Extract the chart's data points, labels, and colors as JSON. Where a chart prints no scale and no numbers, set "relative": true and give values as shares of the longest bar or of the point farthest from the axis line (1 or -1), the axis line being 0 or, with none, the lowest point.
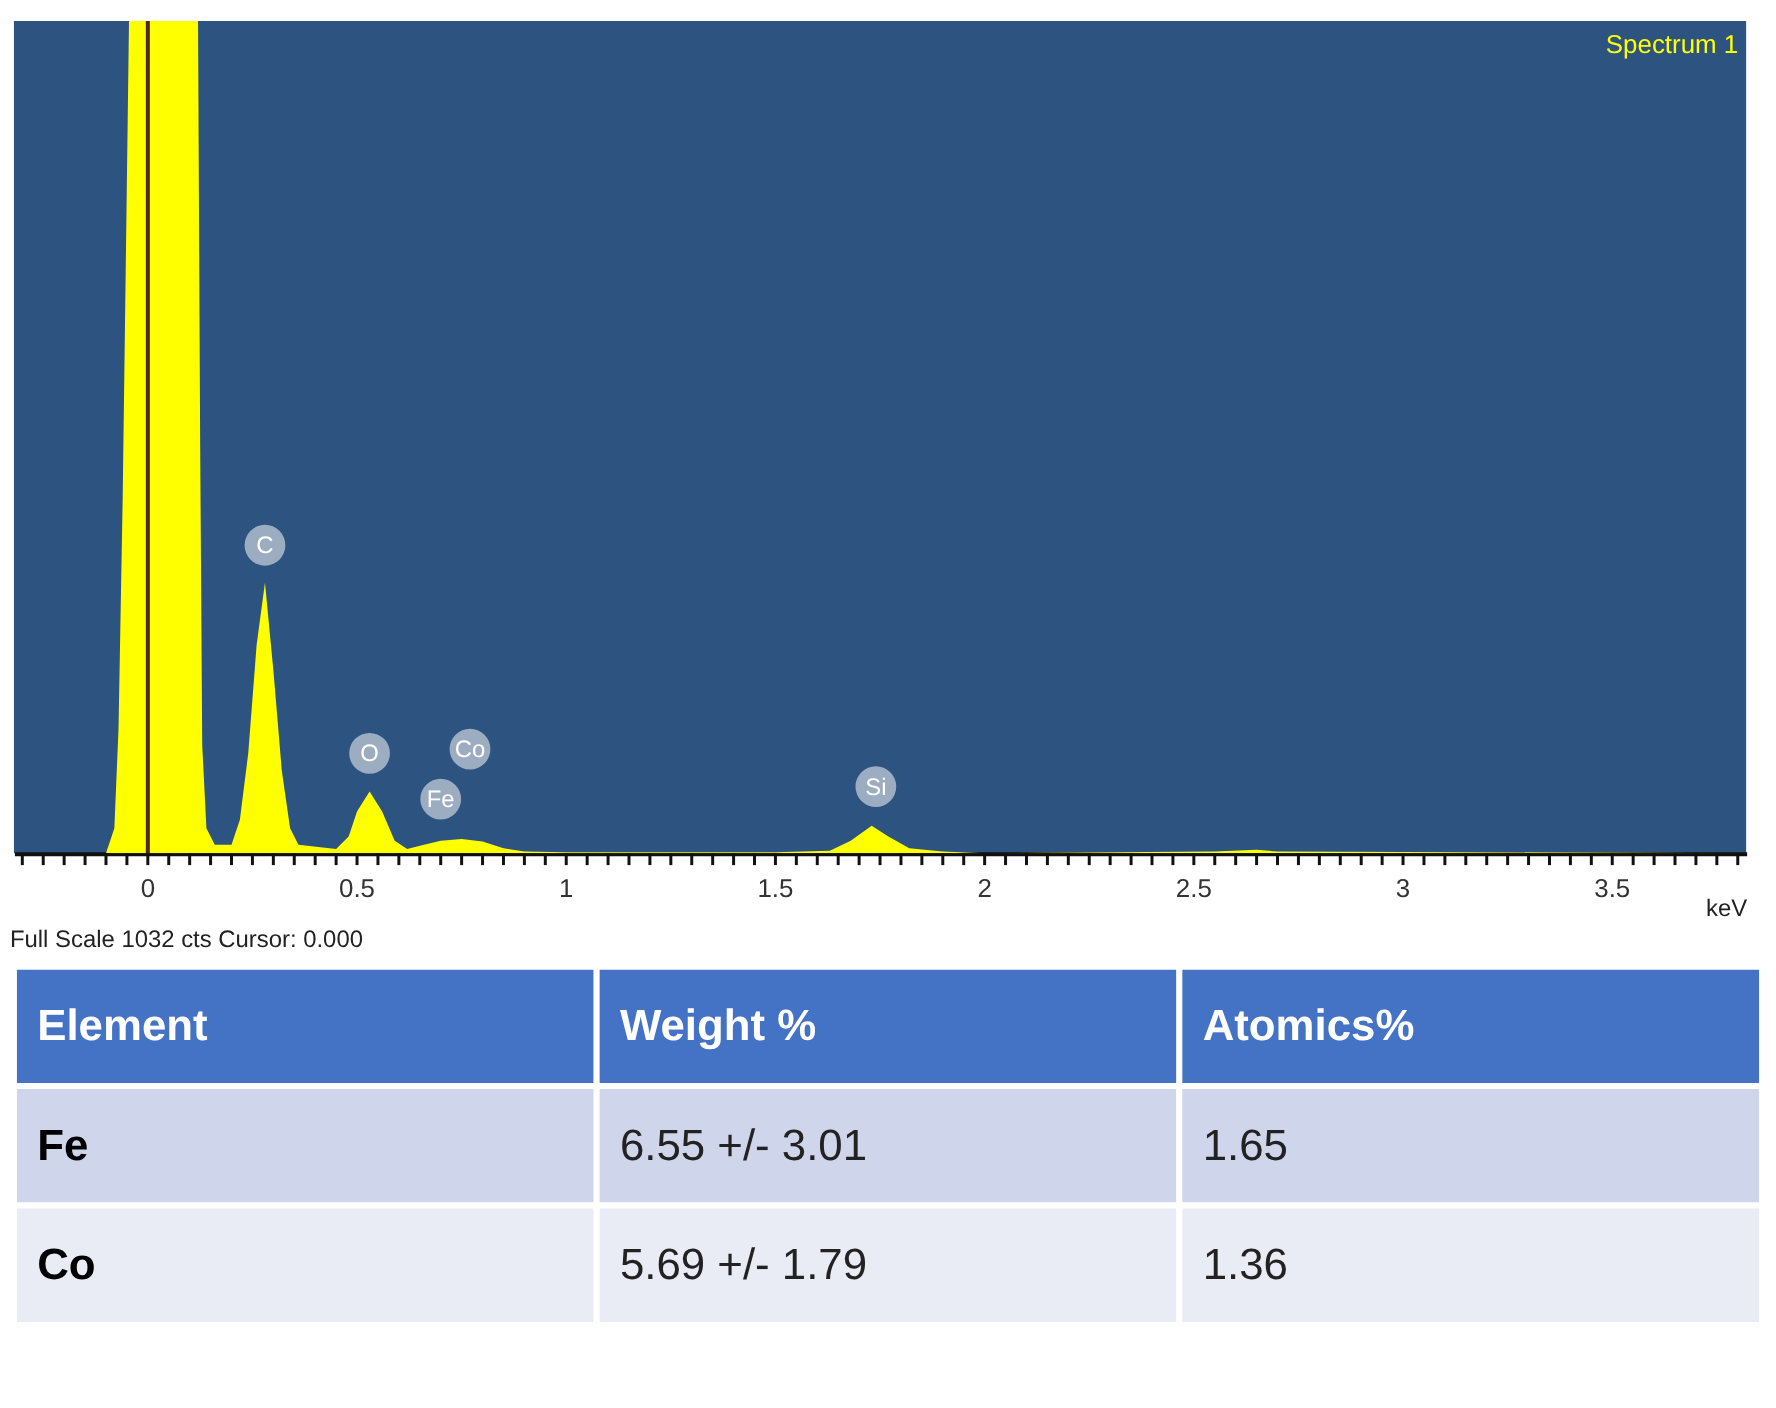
{
  "chart_data": [
    {
      "type": "area",
      "relative": true,
      "xlabel": "keV",
      "legend": "top right",
      "x": [
        -0.32,
        -0.1,
        -0.08,
        -0.07,
        -0.06,
        -0.045,
        0.12,
        0.125,
        0.13,
        0.14,
        0.16,
        0.2,
        0.22,
        0.24,
        0.26,
        0.28,
        0.3,
        0.32,
        0.34,
        0.36,
        0.45,
        0.48,
        0.5,
        0.53,
        0.56,
        0.59,
        0.62,
        0.66,
        0.7,
        0.75,
        0.8,
        0.85,
        0.9,
        1.0,
        1.5,
        1.63,
        1.68,
        1.73,
        1.77,
        1.82,
        1.9,
        2.0,
        2.55,
        2.65,
        2.7,
        3.82
      ],
      "series": [
        {
          "name": "Spectrum 1",
          "color": "#ffff00",
          "values": [
            0,
            0,
            0.03,
            0.15,
            0.43,
            1,
            1,
            0.5,
            0.13,
            0.03,
            0.01,
            0.01,
            0.04,
            0.12,
            0.25,
            0.325,
            0.22,
            0.1,
            0.03,
            0.01,
            0.005,
            0.02,
            0.05,
            0.074,
            0.05,
            0.015,
            0.005,
            0.01,
            0.015,
            0.017,
            0.014,
            0.006,
            0.002,
            0.001,
            0.001,
            0.003,
            0.015,
            0.033,
            0.02,
            0.006,
            0.002,
            0,
            0.002,
            0.004,
            0.002,
            0
          ]
        }
      ],
      "xlim": [
        -0.32,
        3.82
      ],
      "xticks": [
        {
          "value": -0.3,
          "label": null
        },
        {
          "value": -0.25,
          "label": null
        },
        {
          "value": -0.2,
          "label": null
        },
        {
          "value": -0.15,
          "label": null
        },
        {
          "value": -0.1,
          "label": null
        },
        {
          "value": -0.05,
          "label": null
        },
        0,
        {
          "value": 0.05,
          "label": null
        },
        {
          "value": 0.1,
          "label": null
        },
        {
          "value": 0.15,
          "label": null
        },
        {
          "value": 0.2,
          "label": null
        },
        {
          "value": 0.25,
          "label": null
        },
        {
          "value": 0.3,
          "label": null
        },
        {
          "value": 0.35,
          "label": null
        },
        {
          "value": 0.4,
          "label": null
        },
        {
          "value": 0.45,
          "label": null
        },
        0.5,
        {
          "value": 0.55,
          "label": null
        },
        {
          "value": 0.6,
          "label": null
        },
        {
          "value": 0.65,
          "label": null
        },
        {
          "value": 0.7,
          "label": null
        },
        {
          "value": 0.75,
          "label": null
        },
        {
          "value": 0.8,
          "label": null
        },
        {
          "value": 0.85,
          "label": null
        },
        {
          "value": 0.9,
          "label": null
        },
        {
          "value": 0.95,
          "label": null
        },
        1,
        {
          "value": 1.05,
          "label": null
        },
        {
          "value": 1.1,
          "label": null
        },
        {
          "value": 1.15,
          "label": null
        },
        {
          "value": 1.2,
          "label": null
        },
        {
          "value": 1.25,
          "label": null
        },
        {
          "value": 1.3,
          "label": null
        },
        {
          "value": 1.35,
          "label": null
        },
        {
          "value": 1.4,
          "label": null
        },
        {
          "value": 1.45,
          "label": null
        },
        1.5,
        {
          "value": 1.55,
          "label": null
        },
        {
          "value": 1.6,
          "label": null
        },
        {
          "value": 1.65,
          "label": null
        },
        {
          "value": 1.7,
          "label": null
        },
        {
          "value": 1.75,
          "label": null
        },
        {
          "value": 1.8,
          "label": null
        },
        {
          "value": 1.85,
          "label": null
        },
        {
          "value": 1.9,
          "label": null
        },
        {
          "value": 1.95,
          "label": null
        },
        2,
        {
          "value": 2.05,
          "label": null
        },
        {
          "value": 2.1,
          "label": null
        },
        {
          "value": 2.15,
          "label": null
        },
        {
          "value": 2.2,
          "label": null
        },
        {
          "value": 2.25,
          "label": null
        },
        {
          "value": 2.3,
          "label": null
        },
        {
          "value": 2.35,
          "label": null
        },
        {
          "value": 2.4,
          "label": null
        },
        {
          "value": 2.45,
          "label": null
        },
        2.5,
        {
          "value": 2.55,
          "label": null
        },
        {
          "value": 2.6,
          "label": null
        },
        {
          "value": 2.65,
          "label": null
        },
        {
          "value": 2.7,
          "label": null
        },
        {
          "value": 2.75,
          "label": null
        },
        {
          "value": 2.8,
          "label": null
        },
        {
          "value": 2.85,
          "label": null
        },
        {
          "value": 2.9,
          "label": null
        },
        {
          "value": 2.95,
          "label": null
        },
        3,
        {
          "value": 3.05,
          "label": null
        },
        {
          "value": 3.1,
          "label": null
        },
        {
          "value": 3.15,
          "label": null
        },
        {
          "value": 3.2,
          "label": null
        },
        {
          "value": 3.25,
          "label": null
        },
        {
          "value": 3.3,
          "label": null
        },
        {
          "value": 3.35,
          "label": null
        },
        {
          "value": 3.4,
          "label": null
        },
        {
          "value": 3.45,
          "label": null
        },
        3.5,
        {
          "value": 3.55,
          "label": null
        },
        {
          "value": 3.6,
          "label": null
        },
        {
          "value": 3.65,
          "label": null
        },
        {
          "value": 3.7,
          "label": null
        },
        {
          "value": 3.75,
          "label": null
        },
        {
          "value": 3.8,
          "label": null
        }
      ],
      "ref_lines": [
        {
          "axis": "x",
          "value": 0,
          "color": "#4a2a20"
        }
      ],
      "annotations": [
        {
          "text": "C",
          "x": 0.28,
          "y": 0.37
        },
        {
          "text": "O",
          "x": 0.53,
          "y": 0.12
        },
        {
          "text": "Fe",
          "x": 0.7,
          "y": 0.065
        },
        {
          "text": "Co",
          "x": 0.77,
          "y": 0.125
        },
        {
          "text": "Si",
          "x": 1.74,
          "y": 0.08
        },
        "Full Scale 1032 cts Cursor: 0.000"
      ]
    },
    {
      "type": "other",
      "xlabel": "Element",
      "categories": [
        "Fe",
        "Co"
      ],
      "data_labels": true,
      "series": [
        {
          "name": "Weight %",
          "colors": [
            "#cfd5ea",
            "#e9ebf5"
          ],
          "values": [
            6.55,
            5.69
          ],
          "value_labels": [
            "6.55 +/- 3.01",
            "5.69 +/- 1.79"
          ]
        },
        {
          "name": "Atomics%",
          "colors": [
            "#cfd5ea",
            "#e9ebf5"
          ],
          "values": [
            1.65,
            1.36
          ]
        }
      ]
    }
  ]
}
